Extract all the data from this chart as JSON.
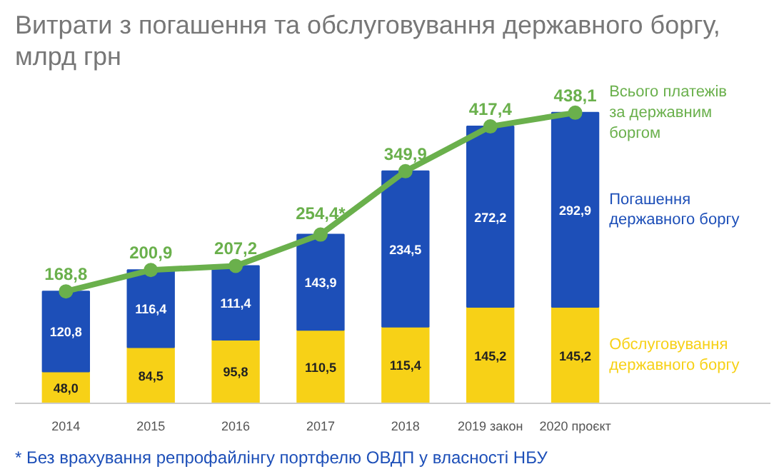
{
  "chart_data": {
    "type": "bar",
    "stacked": true,
    "title": "Витрати з погашення та обслуговування державного боргу,\nмлрд грн",
    "categories": [
      "2014",
      "2015",
      "2016",
      "2017",
      "2018",
      "2019 закон",
      "2020 проєкт"
    ],
    "series": [
      {
        "name": "Обслуговування державного боргу",
        "color": "#f7d117",
        "values": [
          48.0,
          84.5,
          95.8,
          110.5,
          115.4,
          145.2,
          145.2
        ],
        "value_labels": [
          "48,0",
          "84,5",
          "95,8",
          "110,5",
          "115,4",
          "145,2",
          "145,2"
        ]
      },
      {
        "name": "Погашення державного боргу",
        "color": "#1d4fb8",
        "values": [
          120.8,
          116.4,
          111.4,
          143.9,
          234.5,
          272.2,
          292.9
        ],
        "value_labels": [
          "120,8",
          "116,4",
          "111,4",
          "143,9",
          "234,5",
          "272,2",
          "292,9"
        ]
      },
      {
        "name": "Всього платежів за державним боргом",
        "type": "line",
        "marker": "circle",
        "color": "#6ab04c",
        "values": [
          168.8,
          200.9,
          207.2,
          254.4,
          349.9,
          417.4,
          438.1
        ],
        "value_labels": [
          "168,8",
          "200,9",
          "207,2",
          "254,4*",
          "349,9",
          "417,4",
          "438,1"
        ]
      }
    ],
    "annotations": [
      "* Без врахування репрофайлінгу портфелю ОВДП у власності НБУ"
    ],
    "grid": false
  }
}
